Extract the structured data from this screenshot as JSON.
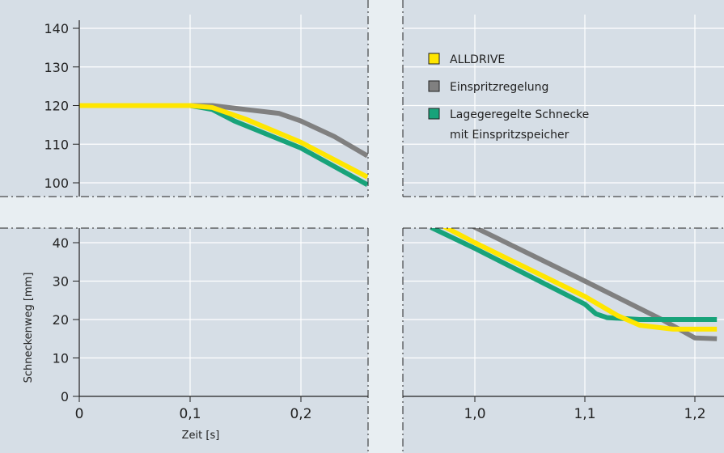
{
  "chart_data": {
    "type": "line",
    "xlabel": "Zeit [s]",
    "ylabel": "Schneckenweg [mm]",
    "y_ticks_upper": [
      "100",
      "110",
      "120",
      "130",
      "140"
    ],
    "y_ticks_lower": [
      "0",
      "10",
      "20",
      "30",
      "40"
    ],
    "x_ticks_left": [
      "0",
      "0,1",
      "0,2"
    ],
    "x_ticks_right": [
      "1,0",
      "1,1",
      "1,2"
    ],
    "ylim_upper": [
      95,
      142
    ],
    "ylim_lower": [
      0,
      44
    ],
    "xlim_left": [
      0,
      0.26
    ],
    "xlim_right": [
      0.96,
      1.22
    ],
    "grid": true,
    "legend": {
      "position": "top-right",
      "entries": [
        {
          "label": "ALLDRIVE",
          "color": "#ffe600"
        },
        {
          "label": "Einspritzregelung",
          "color": "#808080"
        },
        {
          "label": "Lagegeregelte Schnecke\nmit Einspritzspeicher",
          "color": "#18a37a"
        }
      ]
    },
    "series": [
      {
        "name": "ALLDRIVE",
        "color": "#ffe600",
        "upper_left": [
          [
            0,
            120
          ],
          [
            0.1,
            120
          ],
          [
            0.12,
            119.5
          ],
          [
            0.15,
            116.5
          ],
          [
            0.2,
            110.5
          ],
          [
            0.26,
            101.5
          ]
        ],
        "lower_right": [
          [
            0.96,
            46
          ],
          [
            1.0,
            40
          ],
          [
            1.1,
            26
          ],
          [
            1.13,
            21
          ],
          [
            1.15,
            18.5
          ],
          [
            1.18,
            17.5
          ],
          [
            1.22,
            17.5
          ]
        ]
      },
      {
        "name": "Einspritzregelung",
        "color": "#808080",
        "upper_left": [
          [
            0,
            120
          ],
          [
            0.12,
            120
          ],
          [
            0.15,
            119
          ],
          [
            0.18,
            118
          ],
          [
            0.2,
            116
          ],
          [
            0.23,
            112
          ],
          [
            0.26,
            107
          ]
        ],
        "lower_right": [
          [
            0.96,
            52
          ],
          [
            1.0,
            44
          ],
          [
            1.1,
            30
          ],
          [
            1.17,
            20
          ],
          [
            1.2,
            15.2
          ],
          [
            1.22,
            15
          ]
        ]
      },
      {
        "name": "Lagegeregelte Schnecke mit Einspritzspeicher",
        "color": "#18a37a",
        "upper_left": [
          [
            0,
            120
          ],
          [
            0.1,
            120
          ],
          [
            0.12,
            119
          ],
          [
            0.14,
            116
          ],
          [
            0.2,
            109
          ],
          [
            0.26,
            99.5
          ]
        ],
        "lower_right": [
          [
            0.96,
            44
          ],
          [
            1.0,
            38.5
          ],
          [
            1.1,
            24
          ],
          [
            1.11,
            21.5
          ],
          [
            1.12,
            20.5
          ],
          [
            1.15,
            20
          ],
          [
            1.22,
            20
          ]
        ]
      }
    ]
  }
}
